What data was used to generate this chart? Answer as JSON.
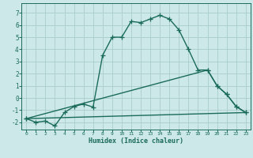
{
  "xlabel": "Humidex (Indice chaleur)",
  "background_color": "#cce8e8",
  "grid_color": "#aacccc",
  "line_color": "#1a6b5a",
  "xlim": [
    -0.5,
    23.5
  ],
  "ylim": [
    -2.6,
    7.8
  ],
  "xticks": [
    0,
    1,
    2,
    3,
    4,
    5,
    6,
    7,
    8,
    9,
    10,
    11,
    12,
    13,
    14,
    15,
    16,
    17,
    18,
    19,
    20,
    21,
    22,
    23
  ],
  "yticks": [
    -2,
    -1,
    0,
    1,
    2,
    3,
    4,
    5,
    6,
    7
  ],
  "line1_x": [
    0,
    1,
    2,
    3,
    4,
    5,
    6,
    7,
    8,
    9,
    10,
    11,
    12,
    13,
    14,
    15,
    16,
    17,
    18,
    19,
    20,
    21,
    22,
    23
  ],
  "line1_y": [
    -1.7,
    -2.0,
    -1.9,
    -2.3,
    -1.2,
    -0.7,
    -0.5,
    -0.75,
    3.5,
    5.0,
    5.0,
    6.3,
    6.2,
    6.5,
    6.8,
    6.5,
    5.6,
    4.0,
    2.3,
    2.3,
    1.0,
    0.3,
    -0.7,
    -1.2
  ],
  "line2_x": [
    0,
    19,
    20,
    21,
    22,
    23
  ],
  "line2_y": [
    -1.7,
    2.3,
    1.0,
    0.3,
    -0.7,
    -1.2
  ],
  "line3_x": [
    0,
    23
  ],
  "line3_y": [
    -1.7,
    -1.2
  ],
  "linewidth": 1.0,
  "markersize": 4.5
}
